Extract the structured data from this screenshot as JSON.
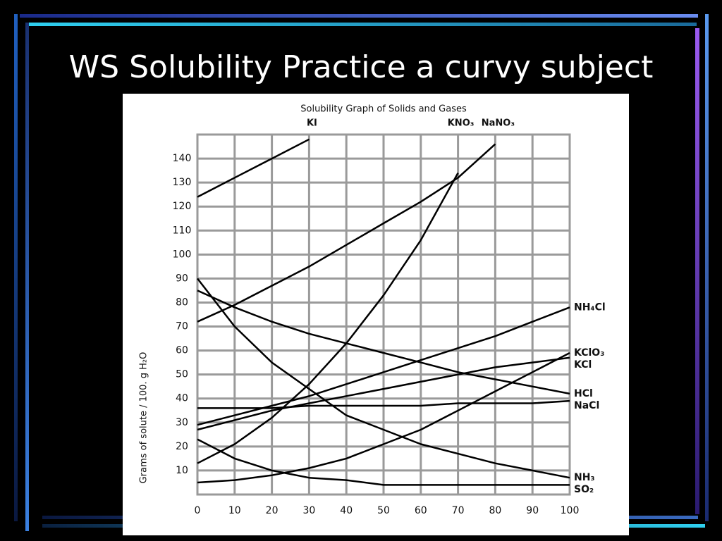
{
  "slide_title": "WS Solubility Practice a curvy subject",
  "chart_data": {
    "type": "line",
    "title": "Solubility Graph of Solids and Gases",
    "y_label": "Grams of solute / 100. g H₂O",
    "x": [
      0,
      10,
      20,
      30,
      40,
      50,
      60,
      70,
      80,
      90,
      100
    ],
    "xlim": [
      0,
      100
    ],
    "ylim": [
      0,
      150
    ],
    "xticks": [
      0,
      10,
      20,
      30,
      40,
      50,
      60,
      70,
      80,
      90,
      100
    ],
    "yticks": [
      10,
      20,
      30,
      40,
      50,
      60,
      70,
      80,
      90,
      100,
      110,
      120,
      130,
      140
    ],
    "grid": true,
    "series": [
      {
        "name": "KI",
        "color": "#000000",
        "values": [
          124,
          132,
          140,
          148,
          null,
          null,
          null,
          null,
          null,
          null,
          null
        ]
      },
      {
        "name": "KNO₃",
        "color": "#000000",
        "values": [
          13,
          21,
          32,
          46,
          63,
          83,
          106,
          134,
          null,
          null,
          null
        ]
      },
      {
        "name": "NaNO₃",
        "color": "#000000",
        "values": [
          72,
          79,
          87,
          95,
          104,
          113,
          122,
          132,
          146,
          null,
          null
        ]
      },
      {
        "name": "NH₄Cl",
        "color": "#000000",
        "values": [
          29,
          33,
          37,
          41,
          46,
          51,
          56,
          61,
          66,
          72,
          78
        ]
      },
      {
        "name": "KClO₃",
        "color": "#000000",
        "values": [
          5,
          6,
          8,
          11,
          15,
          21,
          27,
          35,
          43,
          51,
          59
        ]
      },
      {
        "name": "KCl",
        "color": "#000000",
        "values": [
          27,
          31,
          35,
          38,
          41,
          44,
          47,
          50,
          53,
          55,
          57
        ]
      },
      {
        "name": "HCl",
        "color": "#000000",
        "values": [
          85,
          78,
          72,
          67,
          63,
          59,
          55,
          51,
          48,
          45,
          42
        ]
      },
      {
        "name": "NaCl",
        "color": "#000000",
        "values": [
          36,
          36,
          36,
          37,
          37,
          37,
          37,
          38,
          38,
          38,
          39
        ]
      },
      {
        "name": "NH₃",
        "color": "#000000",
        "values": [
          90,
          70,
          55,
          44,
          33,
          27,
          21,
          17,
          13,
          10,
          7
        ]
      },
      {
        "name": "SO₂",
        "color": "#000000",
        "values": [
          23,
          15,
          10,
          7,
          6,
          4,
          4,
          4,
          4,
          4,
          4
        ]
      }
    ]
  }
}
